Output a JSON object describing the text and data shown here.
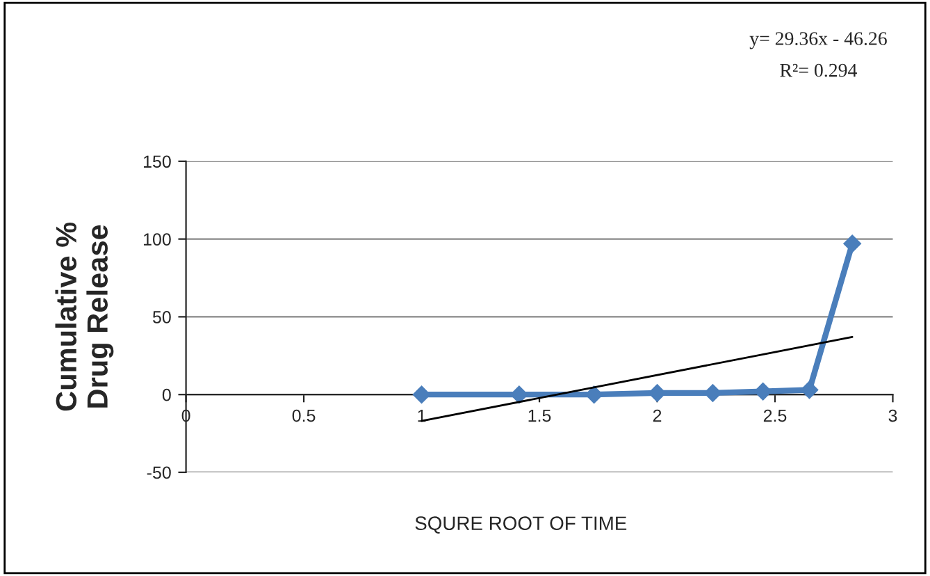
{
  "chart_data": {
    "type": "line",
    "xlabel": "SQURE ROOT OF TIME",
    "ylabel": "Cumulative %\nDrug Release",
    "series": [
      {
        "color": "#4a7ebb",
        "marker": "diamond",
        "x": [
          1,
          1.414,
          1.732,
          2,
          2.236,
          2.449,
          2.646,
          2.828
        ],
        "values": [
          0,
          0,
          0,
          1,
          1,
          2,
          3,
          97
        ]
      },
      {
        "color": "#000000",
        "marker": "none",
        "x": [
          1,
          2.828
        ],
        "values": [
          -17,
          37
        ]
      }
    ],
    "xlim": [
      0,
      3
    ],
    "xticks": [
      0,
      0.5,
      1,
      1.5,
      2,
      2.5,
      3
    ],
    "ylim": [
      -50,
      150
    ],
    "yticks": [
      -50,
      0,
      50,
      100,
      150
    ],
    "grid": "y",
    "annotations": [
      "y= 29.36x - 46.26",
      "R²= 0.294"
    ]
  }
}
